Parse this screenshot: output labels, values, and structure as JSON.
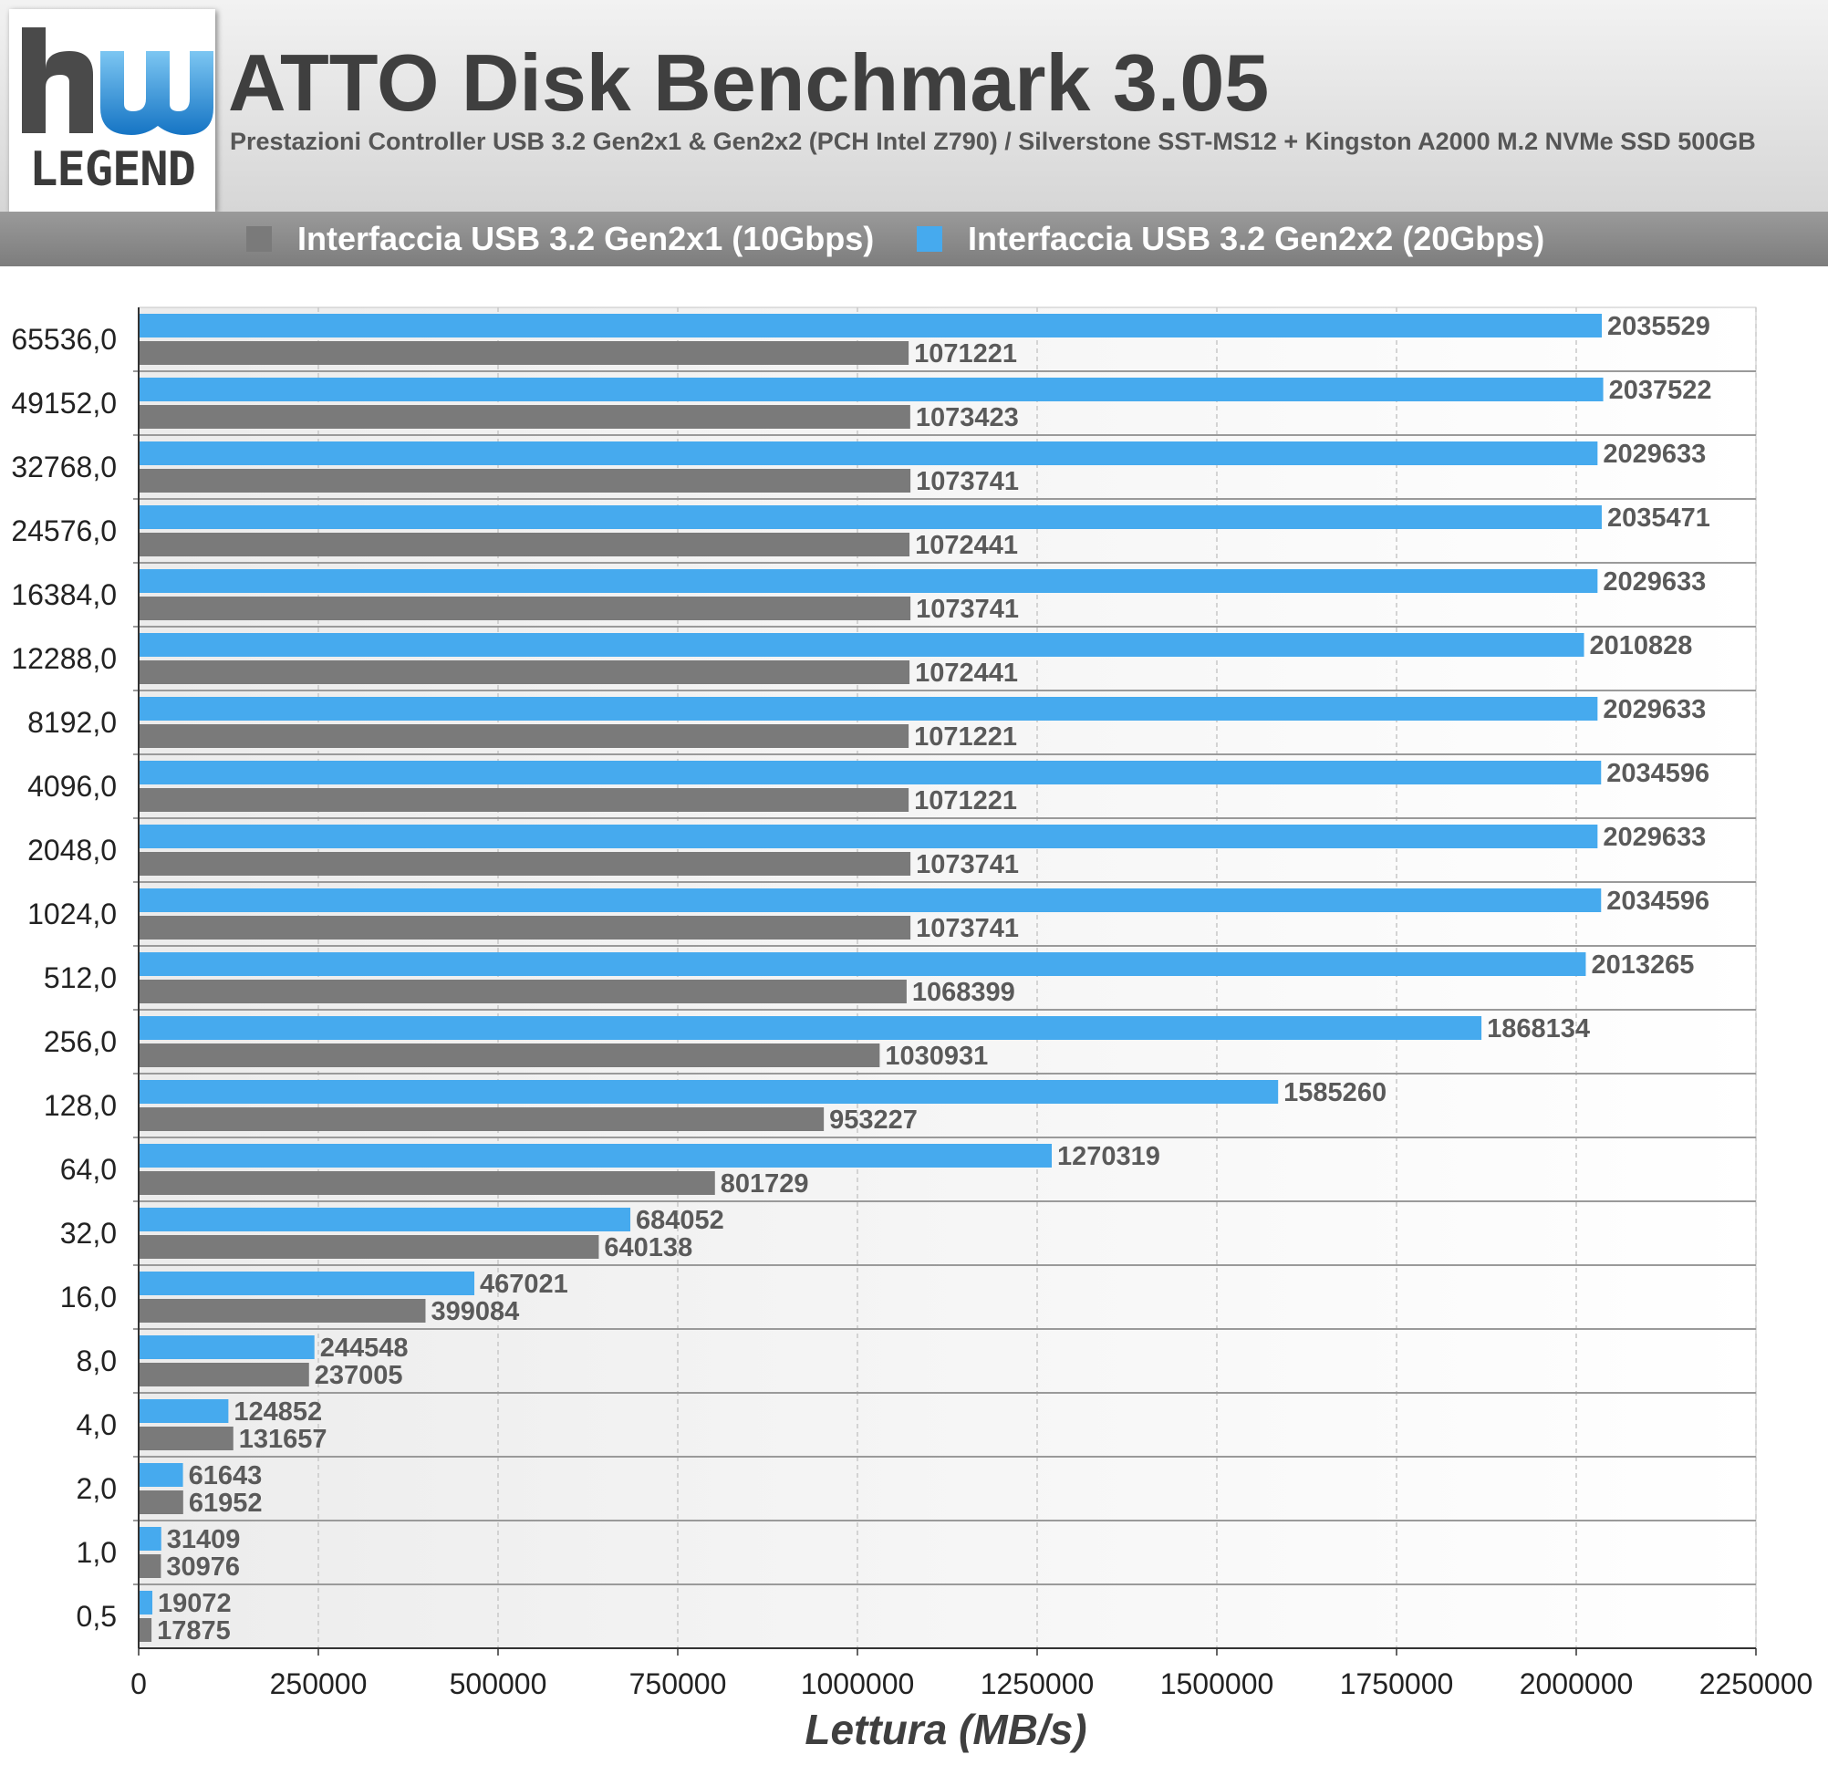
{
  "header": {
    "logo_text": "LEGEND",
    "title": "ATTO Disk Benchmark 3.05",
    "subtitle": "Prestazioni Controller USB 3.2 Gen2x1 & Gen2x2 (PCH Intel Z790) / Silverstone SST-MS12 + Kingston A2000 M.2 NVMe SSD 500GB"
  },
  "legend": [
    {
      "label": "Interfaccia USB 3.2 Gen2x1 (10Gbps)",
      "color": "#7a7a7a"
    },
    {
      "label": "Interfaccia USB 3.2 Gen2x2 (20Gbps)",
      "color": "#46aaee"
    }
  ],
  "colors": {
    "gen2x1": "#7a7a7a",
    "gen2x2": "#46aaee",
    "accent_logo": "#1a7fd0"
  },
  "chart_data": {
    "type": "bar",
    "orientation": "horizontal",
    "title": "ATTO Disk Benchmark 3.05",
    "xlabel": "Lettura (MB/s)",
    "ylabel": "",
    "xlim": [
      0,
      2250000
    ],
    "x_ticks": [
      "0",
      "250000",
      "500000",
      "750000",
      "1000000",
      "1250000",
      "1500000",
      "1750000",
      "2000000",
      "2250000"
    ],
    "x_tick_values": [
      0,
      250000,
      500000,
      750000,
      1000000,
      1250000,
      1500000,
      1750000,
      2000000,
      2250000
    ],
    "grid": true,
    "legend_position": "top",
    "categories": [
      "65536,0",
      "49152,0",
      "32768,0",
      "24576,0",
      "16384,0",
      "12288,0",
      "8192,0",
      "4096,0",
      "2048,0",
      "1024,0",
      "512,0",
      "256,0",
      "128,0",
      "64,0",
      "32,0",
      "16,0",
      "8,0",
      "4,0",
      "2,0",
      "1,0",
      "0,5"
    ],
    "series": [
      {
        "name": "Interfaccia USB 3.2 Gen2x2 (20Gbps)",
        "color": "#46aaee",
        "values": [
          2035529,
          2037522,
          2029633,
          2035471,
          2029633,
          2010828,
          2029633,
          2034596,
          2029633,
          2034596,
          2013265,
          1868134,
          1585260,
          1270319,
          684052,
          467021,
          244548,
          124852,
          61643,
          31409,
          19072
        ]
      },
      {
        "name": "Interfaccia USB 3.2 Gen2x1 (10Gbps)",
        "color": "#7a7a7a",
        "values": [
          1071221,
          1073423,
          1073741,
          1072441,
          1073741,
          1072441,
          1071221,
          1071221,
          1073741,
          1073741,
          1068399,
          1030931,
          953227,
          801729,
          640138,
          399084,
          237005,
          131657,
          61952,
          30976,
          17875
        ]
      }
    ]
  }
}
